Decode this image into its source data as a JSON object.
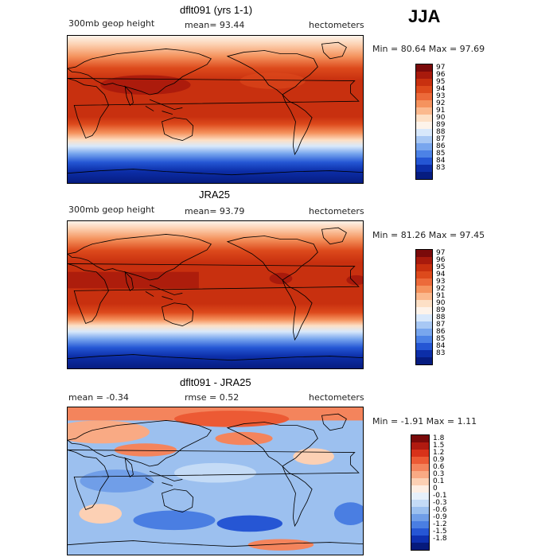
{
  "season": "JJA",
  "panels": [
    {
      "title": "dflt091 (yrs 1-1)",
      "left_label": "300mb geop height",
      "mid_label": "mean=  93.44",
      "right_label": "hectometers",
      "minmax": "Min =  80.64 Max =  97.69"
    },
    {
      "title": "JRA25",
      "left_label": "300mb geop height",
      "mid_label": "mean=  93.79",
      "right_label": "hectometers",
      "minmax": "Min =  81.26 Max =  97.45"
    },
    {
      "title": "dflt091 - JRA25",
      "left_label": "mean =   -0.34",
      "mid_label": "rmse =   0.52",
      "right_label": "hectometers",
      "minmax": "Min =  -1.91 Max =   1.11"
    }
  ],
  "colorbar_abs": {
    "labels": [
      "97",
      "96",
      "95",
      "94",
      "93",
      "92",
      "91",
      "90",
      "89",
      "88",
      "87",
      "86",
      "85",
      "84",
      "83"
    ],
    "colors": [
      "#7a0a0a",
      "#a81a0c",
      "#c8300f",
      "#dd4a1c",
      "#ec6a3a",
      "#f5935e",
      "#fbb98e",
      "#fde0c6",
      "#fdf3ea",
      "#d8e8fb",
      "#a8c8f4",
      "#78a6ee",
      "#4c82e6",
      "#2456d4",
      "#0c2ea8",
      "#061c80"
    ]
  },
  "colorbar_diff": {
    "labels": [
      "1.8",
      "1.5",
      "1.2",
      "0.9",
      "0.6",
      "0.3",
      "0.1",
      "0",
      "-0.1",
      "-0.3",
      "-0.6",
      "-0.9",
      "-1.2",
      "-1.5",
      "-1.8"
    ],
    "colors": [
      "#7a0a0a",
      "#b01a10",
      "#d8321a",
      "#ec5a34",
      "#f4845c",
      "#f9aa84",
      "#fcd0b4",
      "#fdeee4",
      "#e6f0fb",
      "#c4dbf6",
      "#9cc0ef",
      "#709ee8",
      "#4a7ee2",
      "#2656d4",
      "#0e30b0",
      "#061a7c"
    ]
  }
}
